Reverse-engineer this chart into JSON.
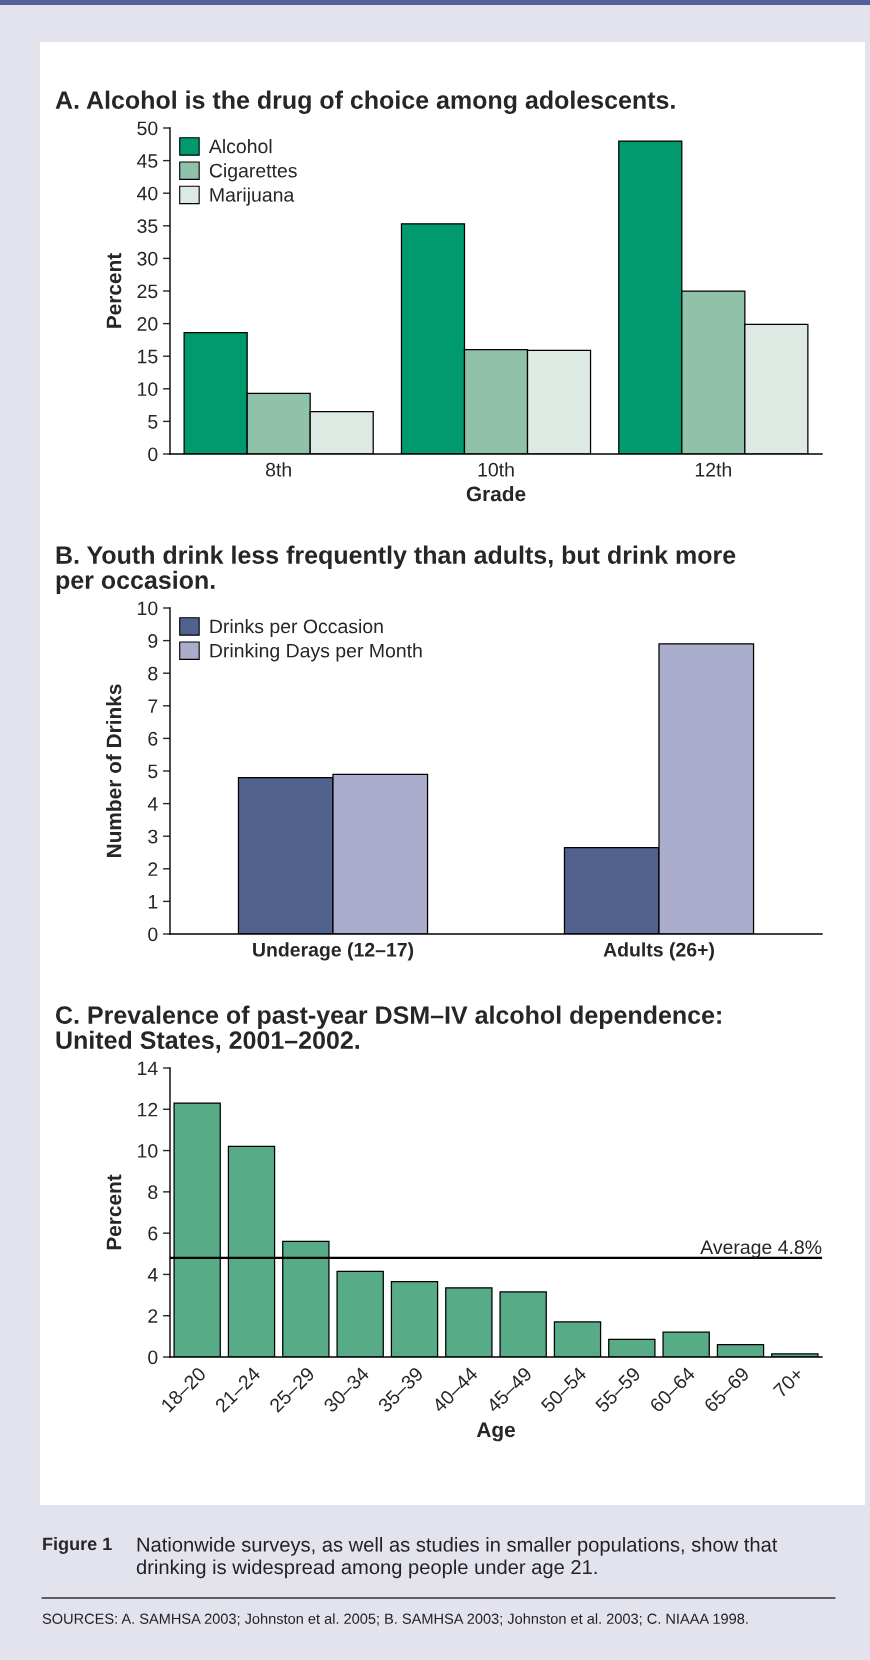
{
  "chart_data": [
    {
      "type": "bar",
      "title": "A. Alcohol is the drug of choice among adolescents.",
      "xlabel": "Grade",
      "ylabel": "Percent",
      "categories": [
        "8th",
        "10th",
        "12th"
      ],
      "series": [
        {
          "name": "Alcohol",
          "color": "#009a6e",
          "values": [
            18.6,
            35.3,
            48.0
          ]
        },
        {
          "name": "Cigarettes",
          "color": "#8fc2a8",
          "values": [
            9.3,
            16.0,
            25.0
          ]
        },
        {
          "name": "Marijuana",
          "color": "#dde9e3",
          "values": [
            6.5,
            15.9,
            19.9
          ]
        }
      ],
      "ylim": [
        0,
        50
      ],
      "yticks": [
        0,
        5,
        10,
        15,
        20,
        25,
        30,
        35,
        40,
        45,
        50
      ],
      "legend": "top left",
      "grid": false
    },
    {
      "type": "bar",
      "title": "B. Youth drink less frequently than adults, but drink more\nper occasion.",
      "ylabel": "Number of Drinks",
      "categories": [
        "Underage (12–17)",
        "Adults (26+)"
      ],
      "series": [
        {
          "name": "Drinks per Occasion",
          "color": "#52628f",
          "values": [
            4.8,
            2.65
          ]
        },
        {
          "name": "Drinking Days per Month",
          "color": "#aaaecc",
          "values": [
            4.9,
            8.9
          ]
        }
      ],
      "ylim": [
        0,
        10
      ],
      "yticks": [
        0,
        1,
        2,
        3,
        4,
        5,
        6,
        7,
        8,
        9,
        10
      ],
      "legend": "top left",
      "grid": false
    },
    {
      "type": "bar",
      "title": "C. Prevalence of past-year DSM–IV alcohol dependence:\nUnited States, 2001–2002.",
      "xlabel": "Age",
      "ylabel": "Percent",
      "categories": [
        "18–20",
        "21–24",
        "25–29",
        "30–34",
        "35–39",
        "40–44",
        "45–49",
        "50–54",
        "55–59",
        "60–64",
        "65–69",
        "70+"
      ],
      "values": [
        12.3,
        10.2,
        5.6,
        4.15,
        3.65,
        3.35,
        3.15,
        1.7,
        0.85,
        1.2,
        0.6,
        0.15
      ],
      "color": "#57ab87",
      "ylim": [
        0,
        14
      ],
      "yticks": [
        0,
        2,
        4,
        6,
        8,
        10,
        12,
        14
      ],
      "grid": false,
      "ref_lines": [
        {
          "axis": "y",
          "value": 4.8,
          "label": "Average 4.8%",
          "color": "#000000"
        }
      ],
      "annotations": [
        "Figure 1",
        "Nationwide surveys, as well as studies in smaller populations, show that\ndrinking is widespread among people under age 21.",
        "SOURCES: A. SAMHSA 2003; Johnston et al. 2005; B. SAMHSA 2003; Johnston et al. 2003; C. NIAAA 1998."
      ]
    }
  ]
}
